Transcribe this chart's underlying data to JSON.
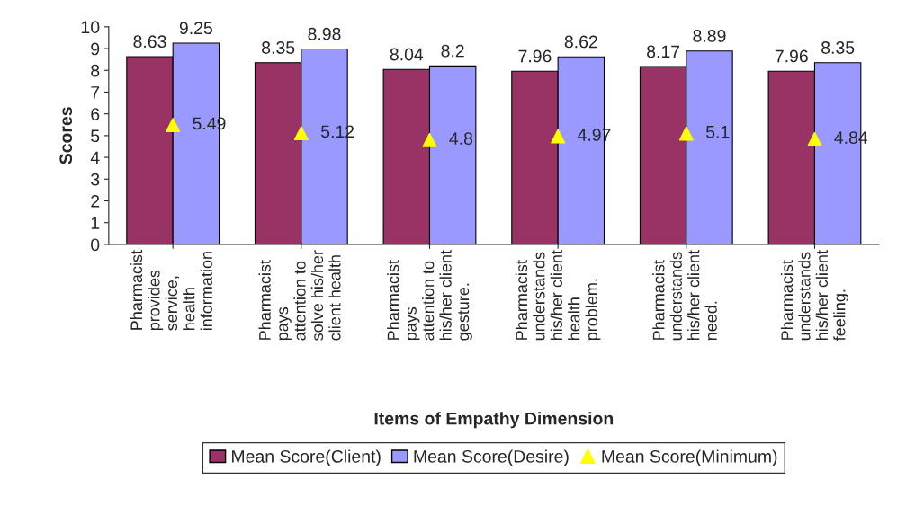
{
  "chart_data": {
    "type": "bar",
    "xlabel": "Items of Empathy Dimension",
    "ylabel": "Scores",
    "categories": [
      "Pharmacist\nprovides\nservice,\nhealth\ninformation",
      "Pharmacist\npays\nattention to\nsolve his/her\nclient health",
      "Pharmacist\npays\nattention to\nhis/her client\ngesture.",
      "Pharmacist\nunderstands\nhis/her client\nhealth\nproblem.",
      "Pharmacist\nunderstands\nhis/her client\nneed.",
      "Pharmacist\nunderstands\nhis/her client\nfeeling."
    ],
    "series": [
      {
        "name": "Mean Score(Client)",
        "color": "#993366",
        "values": [
          8.63,
          8.35,
          8.04,
          7.96,
          8.17,
          7.96
        ]
      },
      {
        "name": "Mean Score(Desire)",
        "color": "#9999ff",
        "values": [
          9.25,
          8.98,
          8.2,
          8.62,
          8.89,
          8.35
        ]
      },
      {
        "name": "Mean Score(Minimum)",
        "color": "#ffff00",
        "type": "scatter",
        "marker": "triangle",
        "values": [
          5.49,
          5.12,
          4.8,
          4.97,
          5.1,
          4.84
        ]
      }
    ],
    "ylim": [
      0,
      10
    ],
    "yticks": [
      0,
      1,
      2,
      3,
      4,
      5,
      6,
      7,
      8,
      9,
      10
    ],
    "data_labels": true,
    "legend": "bottom",
    "grid": false
  }
}
